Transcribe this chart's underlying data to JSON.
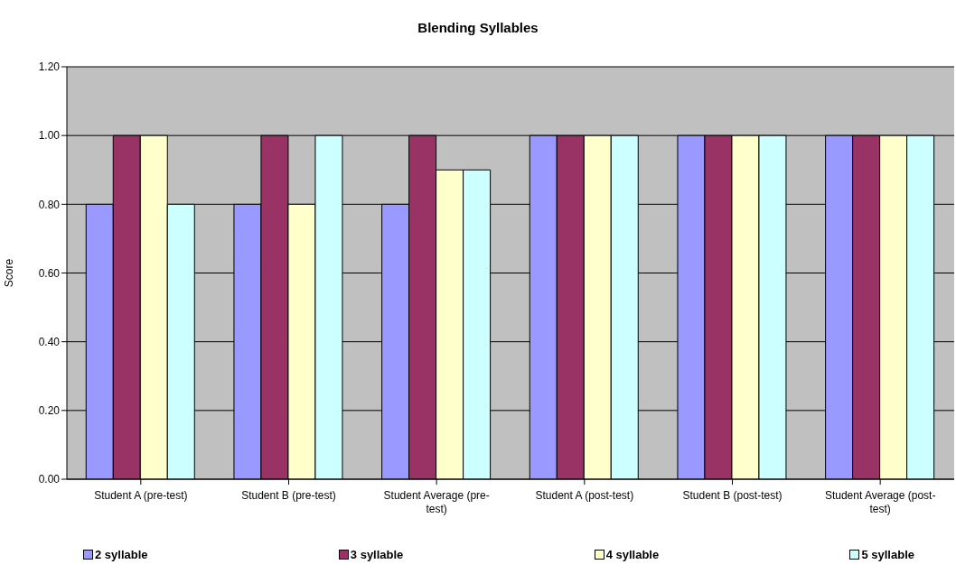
{
  "chart_data": {
    "type": "bar",
    "title": "Blending Syllables",
    "ylabel": "Score",
    "categories": [
      "Student A (pre-test)",
      "Student B (pre-test)",
      "Student Average (pre-test)",
      "Student A (post-test)",
      "Student B (post-test)",
      "Student Average (post-test)"
    ],
    "series": [
      {
        "name": "2 syllable",
        "color": "#9999ff",
        "values": [
          0.8,
          0.8,
          0.8,
          1,
          1,
          1
        ]
      },
      {
        "name": "3 syllable",
        "color": "#993366",
        "values": [
          1,
          1,
          1,
          1,
          1,
          1
        ]
      },
      {
        "name": "4 syllable",
        "color": "#ffffcc",
        "values": [
          1,
          0.8,
          0.9,
          1,
          1,
          1
        ]
      },
      {
        "name": "5 syllable",
        "color": "#ccffff",
        "values": [
          0.8,
          1,
          0.9,
          1,
          1,
          1
        ]
      }
    ],
    "ylim": [
      0,
      1.2
    ],
    "yticks": [
      {
        "value": 0,
        "label": "0.00"
      },
      {
        "value": 0.2,
        "label": "0.20"
      },
      {
        "value": 0.4,
        "label": "0.40"
      },
      {
        "value": 0.6,
        "label": "0.60"
      },
      {
        "value": 0.8,
        "label": "0.80"
      },
      {
        "value": 1,
        "label": "1.00"
      },
      {
        "value": 1.2,
        "label": "1.20"
      }
    ],
    "grid": "y",
    "legend": "bottom"
  }
}
